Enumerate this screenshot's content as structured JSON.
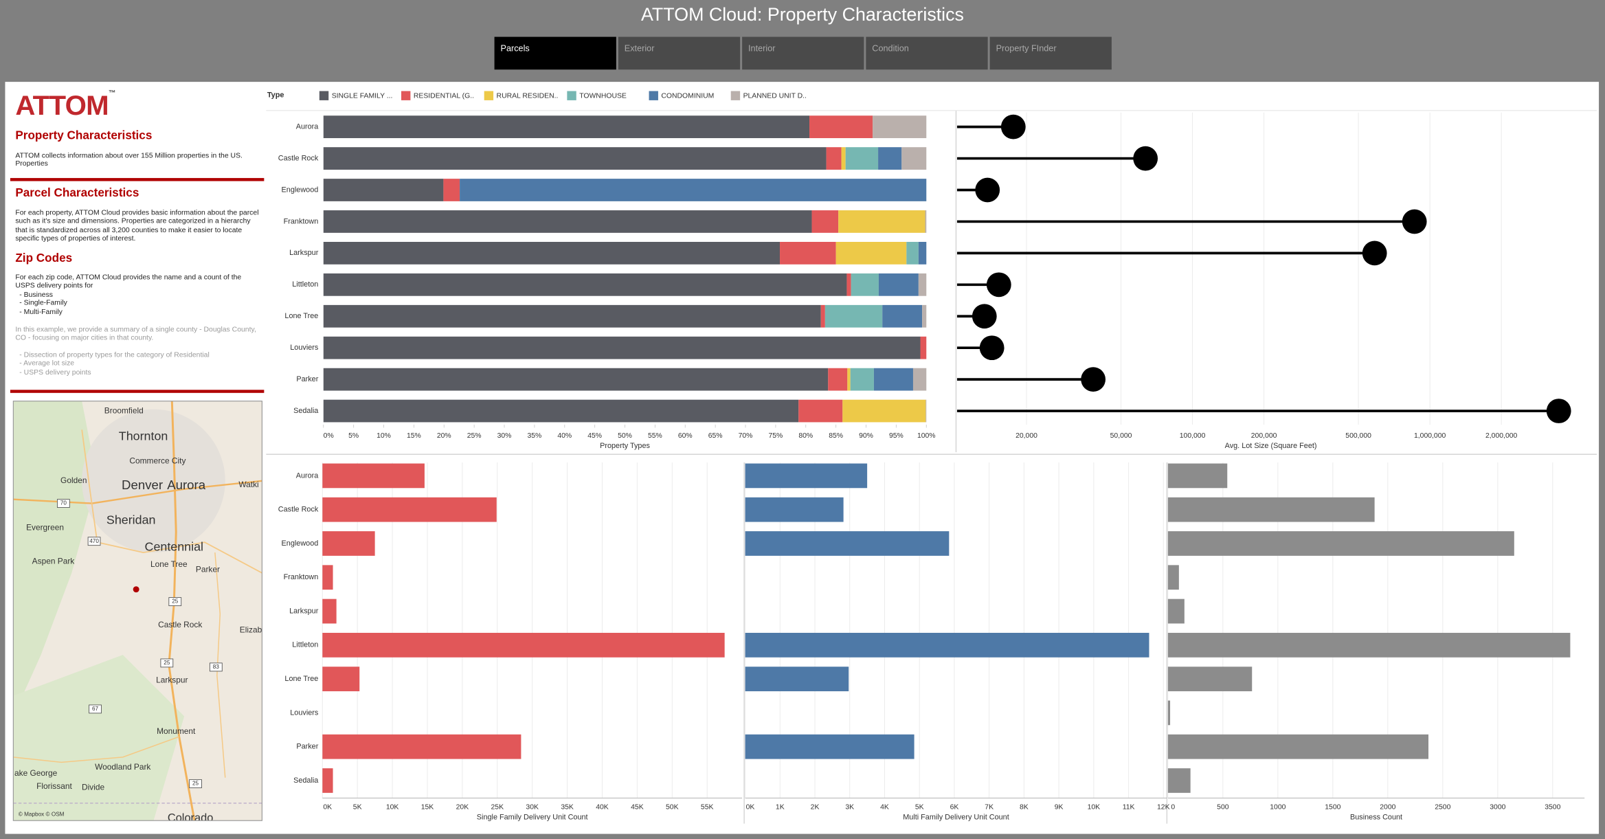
{
  "header": {
    "title": "ATTOM Cloud: Property Characteristics",
    "tabs": [
      "Parcels",
      "Exterior",
      "Interior",
      "Condition",
      "Property FInder"
    ]
  },
  "sidebar": {
    "logo": "ATTOM",
    "trademark": "™",
    "heading": "Property Characteristics",
    "intro": "ATTOM collects information about over 155 Million properties in the US. Properties",
    "sections": [
      {
        "title": "Parcel Characteristics",
        "text": "For each property, ATTOM Cloud provides basic information about the parcel such as it's size and dimensions. Properties are categorized in a hierarchy that is standardized across all 3,200 counties to make it easier to locate specific types of properties of interest."
      },
      {
        "title": "Zip Codes",
        "text": "For each zip code, ATTOM Cloud provides the name and a count of the USPS delivery points for",
        "items": [
          "- Business",
          "- Single-Family",
          "- Multi-Family"
        ]
      }
    ],
    "example": {
      "text": "In this example, we provide a summary of a single county - Douglas County, CO - focusing on major cities in that county.",
      "items": [
        "- Dissection of property types for the category of Residential",
        "- Average lot size",
        "- USPS delivery points"
      ]
    }
  },
  "map": {
    "labels": [
      "Broomfield",
      "Thornton",
      "Commerce City",
      "Golden",
      "Denver",
      "Aurora",
      "Watki",
      "Evergreen",
      "Sheridan",
      "Centennial",
      "Aspen Park",
      "Lone Tree",
      "Parker",
      "Castle Rock",
      "Elizab",
      "Larkspur",
      "Monument",
      "ake George",
      "Woodland Park",
      "Florissant",
      "Divide",
      "Colorado"
    ],
    "shields": [
      "70",
      "470",
      "25",
      "25",
      "83",
      "67",
      "25"
    ],
    "attribution": "© Mapbox © OSM"
  },
  "chart_data": [
    {
      "type": "bar",
      "stacked": true,
      "legend_title": "Type",
      "legend": "top",
      "x_label": "Property Types",
      "categories": [
        "Aurora",
        "Castle Rock",
        "Englewood",
        "Franktown",
        "Larkspur",
        "Littleton",
        "Lone Tree",
        "Louviers",
        "Parker",
        "Sedalia"
      ],
      "series": [
        {
          "name": "SINGLE FAMILY ...",
          "color": "#595b62",
          "values": [
            80.6,
            83.4,
            19.9,
            81.0,
            75.7,
            86.8,
            82.5,
            99.0,
            83.7,
            78.8
          ]
        },
        {
          "name": "RESIDENTIAL (G..",
          "color": "#e15759",
          "values": [
            10.5,
            2.5,
            2.7,
            4.4,
            9.3,
            0.7,
            0.7,
            1.0,
            3.2,
            7.3
          ]
        },
        {
          "name": "RURAL RESIDEN..",
          "color": "#edc948",
          "values": [
            0,
            0.7,
            0,
            14.4,
            11.7,
            0,
            0,
            0,
            0.5,
            13.8
          ]
        },
        {
          "name": "TOWNHOUSE",
          "color": "#76b7b2",
          "values": [
            0,
            5.4,
            0,
            0,
            2.0,
            4.6,
            9.5,
            0,
            3.9,
            0
          ]
        },
        {
          "name": "CONDOMINIUM",
          "color": "#4e79a7",
          "values": [
            0,
            3.9,
            77.4,
            0,
            1.3,
            6.6,
            6.6,
            0,
            6.5,
            0
          ]
        },
        {
          "name": "PLANNED UNIT D..",
          "color": "#bab0ac",
          "values": [
            8.9,
            4.1,
            0,
            0.2,
            0,
            1.3,
            0.7,
            0,
            2.2,
            0.1
          ]
        }
      ],
      "xlim": [
        0,
        100
      ],
      "xticks": [
        {
          "value": 0,
          "label": "0%"
        },
        {
          "value": 5,
          "label": "5%"
        },
        {
          "value": 10,
          "label": "10%"
        },
        {
          "value": 15,
          "label": "15%"
        },
        {
          "value": 20,
          "label": "20%"
        },
        {
          "value": 25,
          "label": "25%"
        },
        {
          "value": 30,
          "label": "30%"
        },
        {
          "value": 35,
          "label": "35%"
        },
        {
          "value": 40,
          "label": "40%"
        },
        {
          "value": 45,
          "label": "45%"
        },
        {
          "value": 50,
          "label": "50%"
        },
        {
          "value": 55,
          "label": "55%"
        },
        {
          "value": 60,
          "label": "60%"
        },
        {
          "value": 65,
          "label": "65%"
        },
        {
          "value": 70,
          "label": "70%"
        },
        {
          "value": 75,
          "label": "75%"
        },
        {
          "value": 80,
          "label": "80%"
        },
        {
          "value": 85,
          "label": "85%"
        },
        {
          "value": 90,
          "label": "90%"
        },
        {
          "value": 95,
          "label": "95%"
        },
        {
          "value": 100,
          "label": "100%"
        }
      ],
      "grid": false
    },
    {
      "type": "lollipop",
      "x_label": "Avg. Lot Size (Square Feet)",
      "color": "#000000",
      "log_scale": true,
      "values": [
        17600,
        63400,
        13700,
        861000,
        585000,
        15300,
        13300,
        14300,
        38200,
        3490000
      ],
      "xlim": [
        10200,
        4480000
      ],
      "xticks": [
        {
          "value": 20000,
          "label": "20,000"
        },
        {
          "value": 50000,
          "label": "50,000"
        },
        {
          "value": 100000,
          "label": "100,000"
        },
        {
          "value": 200000,
          "label": "200,000"
        },
        {
          "value": 500000,
          "label": "500,000"
        },
        {
          "value": 1000000,
          "label": "1,000,000"
        },
        {
          "value": 2000000,
          "label": "2,000,000"
        }
      ],
      "grid": true
    },
    {
      "type": "bar",
      "x_label": "Single Family Delivery Unit Count",
      "color": "#e15759",
      "categories": [
        "Aurora",
        "Castle Rock",
        "Englewood",
        "Franktown",
        "Larkspur",
        "Littleton",
        "Lone Tree",
        "Louviers",
        "Parker",
        "Sedalia"
      ],
      "values": [
        14600,
        24900,
        7500,
        1500,
        2000,
        57500,
        5300,
        0,
        28400,
        1500
      ],
      "xlim": [
        0,
        60000
      ],
      "xticks": [
        {
          "value": 0,
          "label": "0K"
        },
        {
          "value": 5000,
          "label": "5K"
        },
        {
          "value": 10000,
          "label": "10K"
        },
        {
          "value": 15000,
          "label": "15K"
        },
        {
          "value": 20000,
          "label": "20K"
        },
        {
          "value": 25000,
          "label": "25K"
        },
        {
          "value": 30000,
          "label": "30K"
        },
        {
          "value": 35000,
          "label": "35K"
        },
        {
          "value": 40000,
          "label": "40K"
        },
        {
          "value": 45000,
          "label": "45K"
        },
        {
          "value": 50000,
          "label": "50K"
        },
        {
          "value": 55000,
          "label": "55K"
        }
      ],
      "grid": true
    },
    {
      "type": "bar",
      "x_label": "Multi Family Delivery Unit Count",
      "color": "#4e79a7",
      "values": [
        3500,
        2820,
        5850,
        0,
        0,
        11590,
        2970,
        0,
        4850,
        0
      ],
      "xlim": [
        0,
        12100
      ],
      "xticks": [
        {
          "value": 0,
          "label": "0K"
        },
        {
          "value": 1000,
          "label": "1K"
        },
        {
          "value": 2000,
          "label": "2K"
        },
        {
          "value": 3000,
          "label": "3K"
        },
        {
          "value": 4000,
          "label": "4K"
        },
        {
          "value": 5000,
          "label": "5K"
        },
        {
          "value": 6000,
          "label": "6K"
        },
        {
          "value": 7000,
          "label": "7K"
        },
        {
          "value": 8000,
          "label": "8K"
        },
        {
          "value": 9000,
          "label": "9K"
        },
        {
          "value": 10000,
          "label": "10K"
        },
        {
          "value": 11000,
          "label": "11K"
        },
        {
          "value": 12000,
          "label": "12K"
        }
      ],
      "grid": true
    },
    {
      "type": "bar",
      "x_label": "Business Count",
      "color": "#8c8c8c",
      "values": [
        540,
        1880,
        3150,
        100,
        150,
        3660,
        765,
        20,
        2370,
        205
      ],
      "xlim": [
        0,
        3790
      ],
      "xticks": [
        0,
        500,
        1000,
        1500,
        2000,
        2500,
        3000,
        3500
      ],
      "grid": true
    }
  ]
}
